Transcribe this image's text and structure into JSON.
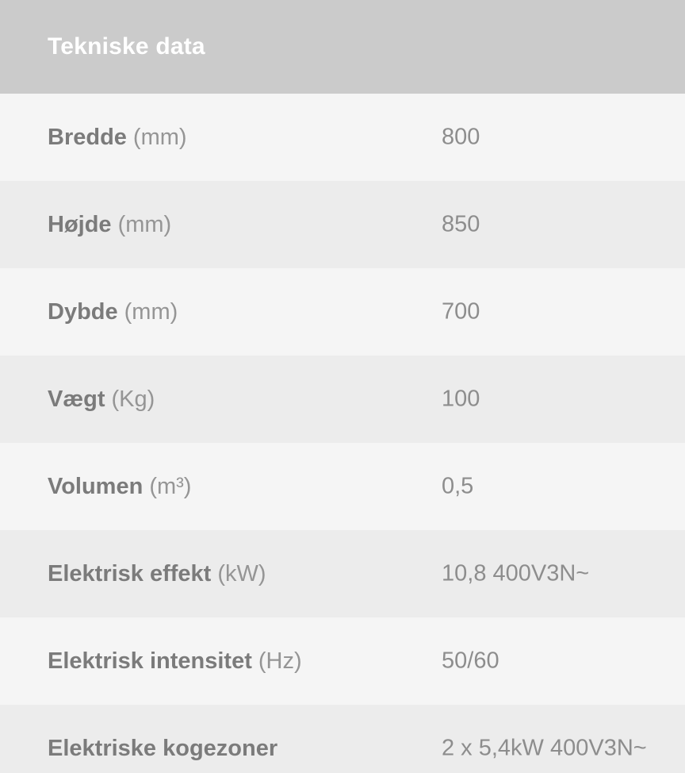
{
  "header": {
    "title": "Tekniske data"
  },
  "table": {
    "rows": [
      {
        "label": "Bredde",
        "unit": "(mm)",
        "value": "800"
      },
      {
        "label": "Højde",
        "unit": "(mm)",
        "value": "850"
      },
      {
        "label": "Dybde",
        "unit": "(mm)",
        "value": "700"
      },
      {
        "label": "Vægt",
        "unit": "(Kg)",
        "value": "100"
      },
      {
        "label": "Volumen",
        "unit": "(m³)",
        "value": "0,5"
      },
      {
        "label": "Elektrisk effekt",
        "unit": "(kW)",
        "value": "10,8 400V3N~"
      },
      {
        "label": "Elektrisk intensitet",
        "unit": "(Hz)",
        "value": "50/60"
      },
      {
        "label": "Elektriske kogezoner",
        "unit": "",
        "value": "2 x 5,4kW 400V3N~"
      }
    ]
  },
  "colors": {
    "header-bg": "#cbcbcb",
    "row-light": "#f5f5f5",
    "row-dark": "#ececec",
    "title-text": "#ffffff",
    "label-text": "#7b7b7b",
    "unit-text": "#959595",
    "value-text": "#8d8d8d"
  }
}
